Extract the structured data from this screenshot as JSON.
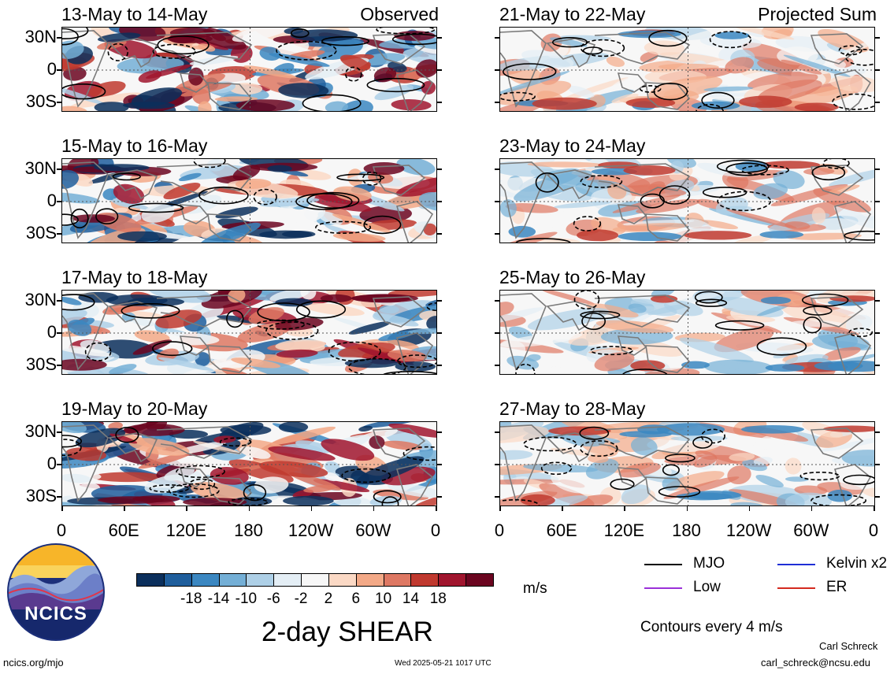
{
  "chart_data": {
    "type": "heatmap",
    "title": "2-day SHEAR",
    "units": "m/s",
    "columns": [
      {
        "tag": "Observed",
        "panels": [
          {
            "title": "13-May to 14-May"
          },
          {
            "title": "15-May to 16-May"
          },
          {
            "title": "17-May to 18-May"
          },
          {
            "title": "19-May to 20-May"
          }
        ]
      },
      {
        "tag": "Projected Sum",
        "panels": [
          {
            "title": "21-May to 22-May"
          },
          {
            "title": "23-May to 24-May"
          },
          {
            "title": "25-May to 26-May"
          },
          {
            "title": "27-May to 28-May"
          }
        ]
      }
    ],
    "y_ticks": [
      "30N",
      "0",
      "30S"
    ],
    "x_ticks": [
      "0",
      "60E",
      "120E",
      "180",
      "120W",
      "60W",
      "0"
    ],
    "colorbar": {
      "labels": [
        "-18",
        "-14",
        "-10",
        "-6",
        "-2",
        "2",
        "6",
        "10",
        "14",
        "18"
      ],
      "colors": [
        "#0b2f5c",
        "#1f5e9c",
        "#3b87c1",
        "#74afd6",
        "#aed0e7",
        "#e4eef5",
        "#f7f7f7",
        "#fbd9c5",
        "#f3a987",
        "#de7863",
        "#c0392f",
        "#a0152e",
        "#6b0520"
      ]
    },
    "legend": [
      {
        "label": "MJO",
        "color": "#000000"
      },
      {
        "label": "Kelvin x2",
        "color": "#1f2fd6"
      },
      {
        "label": "Low",
        "color": "#9b30d9"
      },
      {
        "label": "ER",
        "color": "#d42a1f"
      }
    ],
    "contour_note": "Contours every 4 m/s"
  },
  "logo": {
    "text": "NCICS"
  },
  "footer": {
    "site": "ncics.org/mjo",
    "timestamp": "Wed 2025-05-21 1017 UTC",
    "author": "Carl Schreck",
    "email": "carl_schreck@ncsu.edu"
  }
}
